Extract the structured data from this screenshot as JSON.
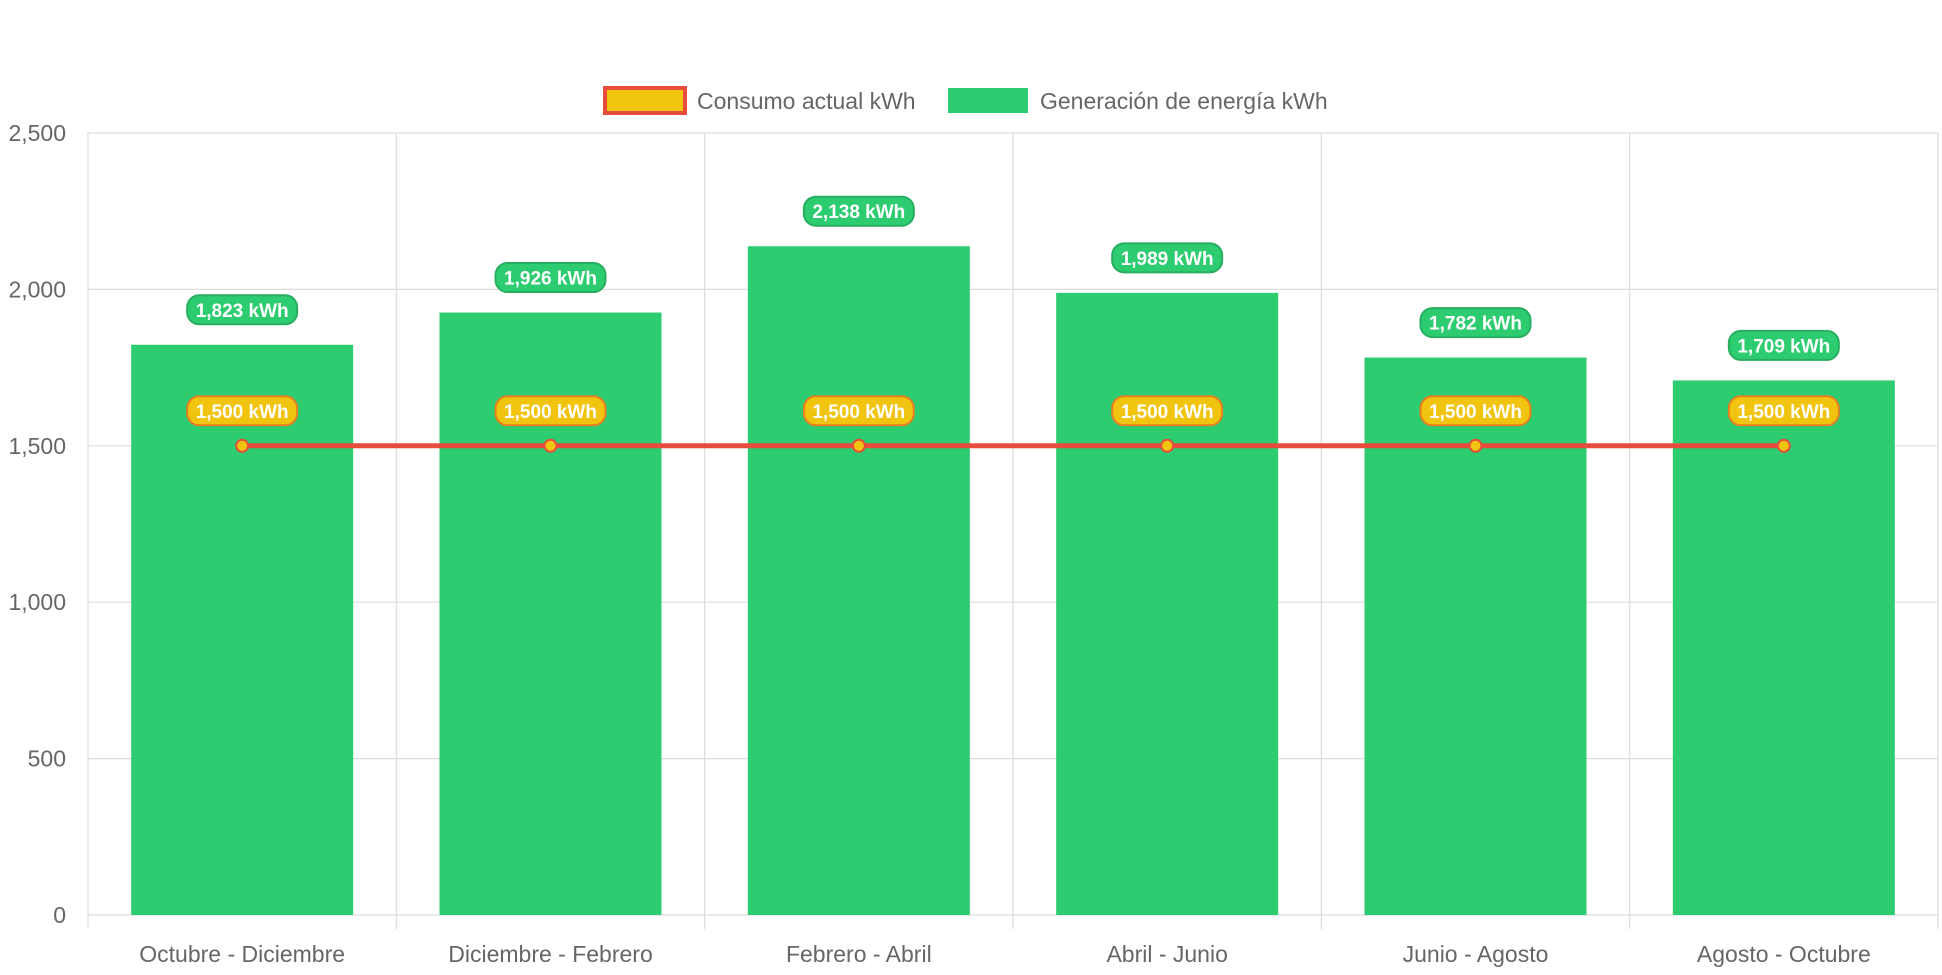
{
  "chart_data": {
    "type": "bar",
    "categories": [
      "Octubre - Diciembre",
      "Diciembre - Febrero",
      "Febrero - Abril",
      "Abril - Junio",
      "Junio - Agosto",
      "Agosto - Octubre"
    ],
    "series": [
      {
        "name": "Consumo actual kWh",
        "type": "line",
        "values": [
          1500,
          1500,
          1500,
          1500,
          1500,
          1500
        ],
        "data_labels": [
          "1,500 kWh",
          "1,500 kWh",
          "1,500 kWh",
          "1,500 kWh",
          "1,500 kWh",
          "1,500 kWh"
        ],
        "color": "#e74c3c",
        "fill_color": "#f1c40f"
      },
      {
        "name": "Generación de energía kWh",
        "type": "bar",
        "values": [
          1823,
          1926,
          2138,
          1989,
          1782,
          1709
        ],
        "data_labels": [
          "1,823 kWh",
          "1,926 kWh",
          "2,138 kWh",
          "1,989 kWh",
          "1,782 kWh",
          "1,709 kWh"
        ],
        "color": "#2ecc71"
      }
    ],
    "ylim": [
      0,
      2500
    ],
    "y_ticks": [
      0,
      500,
      1000,
      1500,
      2000,
      2500
    ],
    "y_tick_labels": [
      "0",
      "500",
      "1,000",
      "1,500",
      "2,000",
      "2,500"
    ],
    "grid": true,
    "legend_position": "top",
    "colors": {
      "grid": "#dddddd",
      "axis_text": "#666666",
      "label_text": "#ffffff"
    }
  }
}
